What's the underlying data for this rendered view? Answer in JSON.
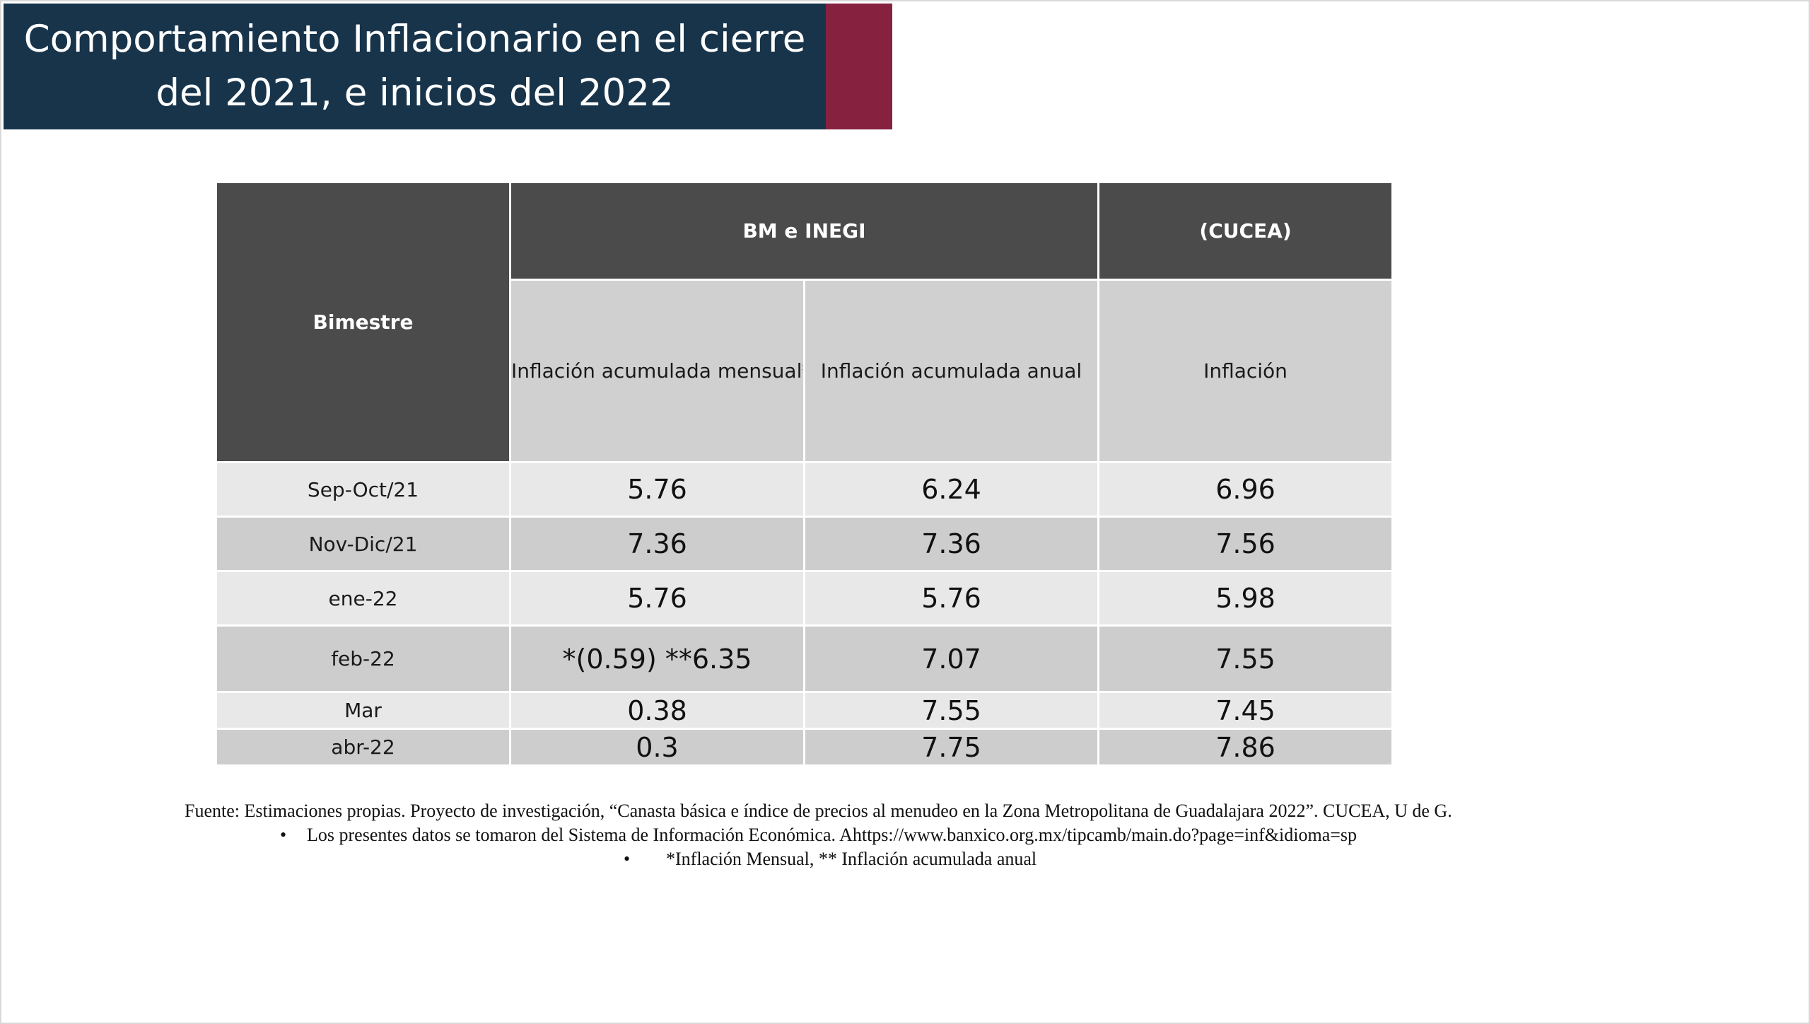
{
  "title": "Comportamiento Inflacionario en el cierre del 2021, e inicios del 2022",
  "colors": {
    "title_bg": "#17344b",
    "title_accent": "#86213f",
    "header_dark": "#4b4b4b",
    "header_light": "#d0d0d0",
    "row_light": "#e8e8e8",
    "row_dark": "#cdcdcd"
  },
  "table": {
    "col_bimestre": "Bimestre",
    "group_bm_inegi": "BM e INEGI",
    "group_cucea": "(CUCEA)",
    "sub_mensual": "Inflación acumulada mensual*",
    "sub_anual": "Inflación acumulada anual",
    "sub_inflacion": "Inflación",
    "rows": [
      {
        "bimestre": "Sep-Oct/21",
        "mensual": "5.76",
        "anual": "6.24",
        "cucea": "6.96"
      },
      {
        "bimestre": "Nov-Dic/21",
        "mensual": "7.36",
        "anual": "7.36",
        "cucea": "7.56"
      },
      {
        "bimestre": "ene-22",
        "mensual": "5.76",
        "anual": "5.76",
        "cucea": "5.98"
      },
      {
        "bimestre": "feb-22",
        "mensual": "*(0.59) **6.35",
        "anual": "7.07",
        "cucea": "7.55"
      },
      {
        "bimestre": "Mar",
        "mensual": "0.38",
        "anual": "7.55",
        "cucea": "7.45"
      },
      {
        "bimestre": "abr-22",
        "mensual": "0.3",
        "anual": "7.75",
        "cucea": "7.86"
      }
    ]
  },
  "footnotes": {
    "source": "Fuente: Estimaciones propias. Proyecto de investigación, “Canasta básica e índice de precios al menudeo en la Zona Metropolitana de Guadalajara 2022”. CUCEA, U de G.",
    "bullet_symbol": "•",
    "bullet1": "Los presentes datos se tomaron del Sistema de Información Económica.  Ahttps://www.banxico.org.mx/tipcamb/main.do?page=inf&idioma=sp",
    "bullet2": "*Inflación Mensual, ** Inflación acumulada anual"
  }
}
